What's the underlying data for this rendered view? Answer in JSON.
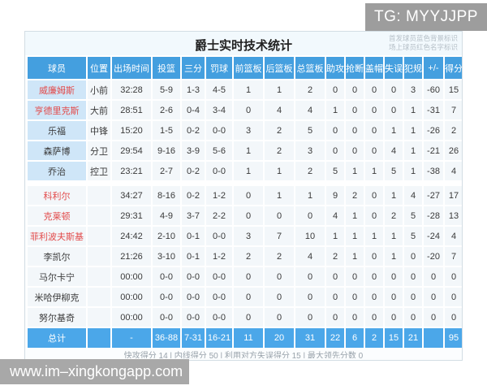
{
  "overlay": {
    "tg_label": "TG: MYYJJPP",
    "watermark": "www.im–xingkongapp.com"
  },
  "panel": {
    "title": "爵士实时技术统计",
    "legend_line1": "首发球员蓝色背景标识",
    "legend_line2": "场上球员红色名字标识",
    "columns": [
      "球员",
      "位置",
      "出场时间",
      "投篮",
      "三分",
      "罚球",
      "前篮板",
      "后篮板",
      "总篮板",
      "助攻",
      "抢断",
      "盖帽",
      "失误",
      "犯规",
      "+/-",
      "得分"
    ],
    "rows": [
      {
        "name": "威廉姆斯",
        "pos": "小前",
        "starter": true,
        "on_court": true,
        "stats": [
          "32:28",
          "5-9",
          "1-3",
          "4-5",
          "1",
          "1",
          "2",
          "0",
          "0",
          "0",
          "0",
          "3",
          "-60",
          "15"
        ]
      },
      {
        "name": "亨德里克斯",
        "pos": "大前",
        "starter": true,
        "on_court": true,
        "stats": [
          "28:51",
          "2-6",
          "0-4",
          "3-4",
          "0",
          "4",
          "4",
          "1",
          "0",
          "0",
          "0",
          "1",
          "-31",
          "7"
        ]
      },
      {
        "name": "乐福",
        "pos": "中锋",
        "starter": true,
        "on_court": false,
        "stats": [
          "15:20",
          "1-5",
          "0-2",
          "0-0",
          "3",
          "2",
          "5",
          "0",
          "0",
          "0",
          "1",
          "1",
          "-26",
          "2"
        ]
      },
      {
        "name": "森萨博",
        "pos": "分卫",
        "starter": true,
        "on_court": false,
        "stats": [
          "29:54",
          "9-16",
          "3-9",
          "5-6",
          "1",
          "2",
          "3",
          "0",
          "0",
          "0",
          "4",
          "1",
          "-21",
          "26"
        ]
      },
      {
        "name": "乔治",
        "pos": "控卫",
        "starter": true,
        "on_court": false,
        "stats": [
          "23:21",
          "2-7",
          "0-2",
          "0-0",
          "1",
          "1",
          "2",
          "5",
          "1",
          "1",
          "5",
          "1",
          "-38",
          "4"
        ]
      },
      {
        "name": "科利尔",
        "pos": "",
        "starter": false,
        "on_court": true,
        "stats": [
          "34:27",
          "8-16",
          "0-2",
          "1-2",
          "0",
          "1",
          "1",
          "9",
          "2",
          "0",
          "1",
          "4",
          "-27",
          "17"
        ]
      },
      {
        "name": "克莱顿",
        "pos": "",
        "starter": false,
        "on_court": true,
        "stats": [
          "29:31",
          "4-9",
          "3-7",
          "2-2",
          "0",
          "0",
          "0",
          "4",
          "1",
          "0",
          "2",
          "5",
          "-28",
          "13"
        ]
      },
      {
        "name": "菲利波夫斯基",
        "pos": "",
        "starter": false,
        "on_court": true,
        "stats": [
          "24:42",
          "2-10",
          "0-1",
          "0-0",
          "3",
          "7",
          "10",
          "1",
          "1",
          "1",
          "1",
          "5",
          "-24",
          "4"
        ]
      },
      {
        "name": "李凯尔",
        "pos": "",
        "starter": false,
        "on_court": false,
        "stats": [
          "21:26",
          "3-10",
          "0-1",
          "1-2",
          "2",
          "2",
          "4",
          "2",
          "1",
          "0",
          "1",
          "0",
          "-20",
          "7"
        ]
      },
      {
        "name": "马尔卡宁",
        "pos": "",
        "starter": false,
        "on_court": false,
        "stats": [
          "00:00",
          "0-0",
          "0-0",
          "0-0",
          "0",
          "0",
          "0",
          "0",
          "0",
          "0",
          "0",
          "0",
          "0",
          "0"
        ]
      },
      {
        "name": "米哈伊柳克",
        "pos": "",
        "starter": false,
        "on_court": false,
        "stats": [
          "00:00",
          "0-0",
          "0-0",
          "0-0",
          "0",
          "0",
          "0",
          "0",
          "0",
          "0",
          "0",
          "0",
          "0",
          "0"
        ]
      },
      {
        "name": "努尔基奇",
        "pos": "",
        "starter": false,
        "on_court": false,
        "stats": [
          "00:00",
          "0-0",
          "0-0",
          "0-0",
          "0",
          "0",
          "0",
          "0",
          "0",
          "0",
          "0",
          "0",
          "0",
          "0"
        ]
      }
    ],
    "total": {
      "label": "总计",
      "pos": "",
      "stats": [
        "-",
        "36-88",
        "7-31",
        "16-21",
        "11",
        "20",
        "31",
        "22",
        "6",
        "2",
        "15",
        "21",
        "",
        "95"
      ]
    },
    "footer": "快攻得分 14 | 内线得分 50 | 利用对方失误得分 15 | 最大领先分数 0",
    "colors": {
      "header_blue": "#449fdf",
      "total_blue": "#4ba7e9",
      "starter_cell_blue": "#cfe6f8",
      "on_court_red": "#e24a4a"
    }
  }
}
